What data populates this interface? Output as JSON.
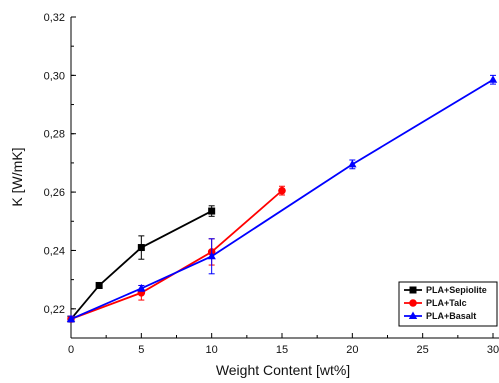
{
  "chart_data": {
    "type": "line",
    "xlabel": "Weight Content [wt%]",
    "ylabel": "K [W/mK]",
    "xlim": [
      0,
      30
    ],
    "ylim": [
      0.21,
      0.32
    ],
    "x_ticks": [
      "0",
      "5",
      "10",
      "15",
      "20",
      "25",
      "30"
    ],
    "y_ticks": [
      "0,22",
      "0,24",
      "0,26",
      "0,28",
      "0,30",
      "0,32"
    ],
    "legend_position": "bottom-right",
    "series": [
      {
        "name": "PLA+Sepiolite",
        "color": "#000000",
        "marker": "square",
        "x": [
          0,
          2,
          5,
          10
        ],
        "y": [
          0.2165,
          0.228,
          0.241,
          0.2535
        ],
        "error": [
          0.001,
          0.001,
          0.004,
          0.0018
        ]
      },
      {
        "name": "PLA+Talc",
        "color": "#ff0000",
        "marker": "circle",
        "x": [
          0,
          5,
          10,
          15
        ],
        "y": [
          0.2165,
          0.2255,
          0.2395,
          0.2605
        ],
        "error": [
          0.001,
          0.0025,
          0.0045,
          0.0015
        ]
      },
      {
        "name": "PLA+Basalt",
        "color": "#0000ff",
        "marker": "triangle",
        "x": [
          0,
          5,
          10,
          20,
          30
        ],
        "y": [
          0.2165,
          0.227,
          0.238,
          0.2695,
          0.2985
        ],
        "error": [
          0.001,
          0.001,
          0.006,
          0.0015,
          0.0015
        ]
      }
    ]
  }
}
